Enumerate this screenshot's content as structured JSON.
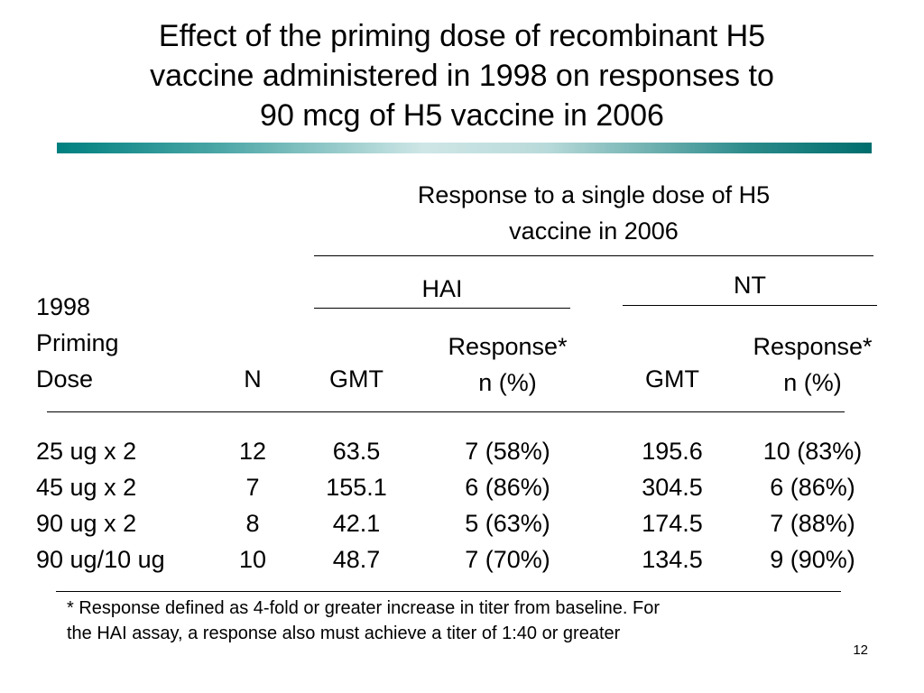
{
  "title": {
    "line1": "Effect of the priming dose of recombinant H5",
    "line2": "vaccine administered in 1998 on responses to",
    "line3": "90 mcg of H5 vaccine in 2006"
  },
  "table": {
    "group_header": {
      "line1": "Response to a single dose of H5",
      "line2": "vaccine in 2006"
    },
    "hai_label": "HAI",
    "nt_label": "NT",
    "row_label_header": {
      "line1": "1998",
      "line2": "Priming",
      "line3": "Dose"
    },
    "n_header": "N",
    "hai_gmt_header": "GMT",
    "hai_resp_header": {
      "line1": "Response*",
      "line2": "n (%)"
    },
    "nt_gmt_header": "GMT",
    "nt_resp_header": {
      "line1": "Response*",
      "line2": "n (%)"
    },
    "rows": [
      {
        "dose": "25 ug x 2",
        "n": "12",
        "hai_gmt": "63.5",
        "hai_resp": "7 (58%)",
        "nt_gmt": "195.6",
        "nt_resp": "10 (83%)"
      },
      {
        "dose": "45 ug x 2",
        "n": "7",
        "hai_gmt": "155.1",
        "hai_resp": "6 (86%)",
        "nt_gmt": "304.5",
        "nt_resp": "6 (86%)"
      },
      {
        "dose": "90 ug x 2",
        "n": "8",
        "hai_gmt": "42.1",
        "hai_resp": "5 (63%)",
        "nt_gmt": "174.5",
        "nt_resp": "7 (88%)"
      },
      {
        "dose": "90 ug/10 ug",
        "n": "10",
        "hai_gmt": "48.7",
        "hai_resp": "7 (70%)",
        "nt_gmt": "134.5",
        "nt_resp": "9 (90%)"
      }
    ]
  },
  "footnote": {
    "line1": "* Response defined as 4-fold or greater increase in titer from baseline.  For",
    "line2": "the HAI assay, a response also must achieve a titer of 1:40 or greater"
  },
  "page_number": "12",
  "colors": {
    "accent_bar": "#008080"
  }
}
